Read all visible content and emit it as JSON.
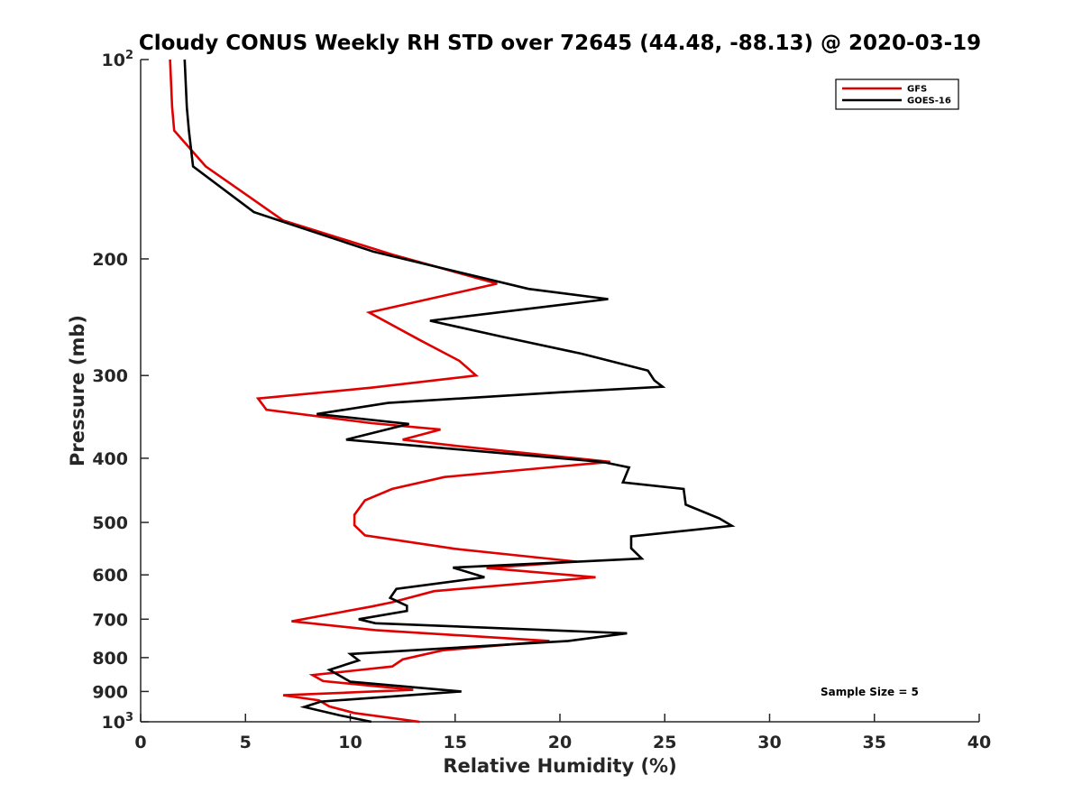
{
  "chart_data": {
    "type": "line",
    "title": "Cloudy CONUS Weekly RH STD over 72645 (44.48, -88.13) @ 2020-03-19",
    "xlabel": "Relative Humidity (%)",
    "ylabel": "Pressure (mb)",
    "xlim": [
      0,
      40
    ],
    "ylim": [
      100,
      1000
    ],
    "y_scale": "log",
    "y_reversed": true,
    "grid": false,
    "legend_location": "top-right",
    "x_ticks": [
      {
        "value": 0,
        "label": "0"
      },
      {
        "value": 5,
        "label": "5"
      },
      {
        "value": 10,
        "label": "10"
      },
      {
        "value": 15,
        "label": "15"
      },
      {
        "value": 20,
        "label": "20"
      },
      {
        "value": 25,
        "label": "25"
      },
      {
        "value": 30,
        "label": "30"
      },
      {
        "value": 35,
        "label": "35"
      },
      {
        "value": 40,
        "label": "40"
      }
    ],
    "y_ticks": [
      {
        "value": 100,
        "label": "10",
        "exponent": "2"
      },
      {
        "value": 200,
        "label": "200"
      },
      {
        "value": 300,
        "label": "300"
      },
      {
        "value": 400,
        "label": "400"
      },
      {
        "value": 500,
        "label": "500"
      },
      {
        "value": 600,
        "label": "600"
      },
      {
        "value": 700,
        "label": "700"
      },
      {
        "value": 800,
        "label": "800"
      },
      {
        "value": 900,
        "label": "900"
      },
      {
        "value": 1000,
        "label": "10",
        "exponent": "3"
      }
    ],
    "annotation": "Sample Size = 5",
    "series": [
      {
        "name": "GFS",
        "color": "#e00000",
        "x": [
          1.4,
          1.5,
          1.6,
          3.1,
          6.8,
          12.0,
          17.0,
          10.9,
          13.3,
          15.2,
          16.0,
          11.0,
          5.6,
          6.0,
          11.0,
          14.3,
          12.5,
          15.0,
          22.4,
          14.5,
          12.0,
          10.7,
          10.2,
          10.2,
          10.7,
          15.0,
          20.8,
          16.5,
          21.7,
          14.0,
          12.0,
          11.0,
          7.2,
          11.2,
          19.5,
          14.4,
          12.5,
          12.0,
          8.2,
          8.7,
          13.0,
          6.8,
          8.5,
          9.0,
          10.2,
          13.3
        ],
        "y": [
          100,
          118,
          128,
          145,
          175,
          197,
          218,
          241,
          265,
          285,
          300,
          313,
          325,
          338,
          354,
          362,
          375,
          383,
          405,
          427,
          445,
          463,
          487,
          505,
          523,
          548,
          573,
          586,
          605,
          635,
          660,
          670,
          705,
          727,
          755,
          780,
          805,
          825,
          850,
          868,
          895,
          912,
          928,
          948,
          970,
          1000
        ]
      },
      {
        "name": "GOES-16",
        "color": "#000000",
        "x": [
          2.1,
          2.2,
          2.3,
          2.5,
          5.4,
          11.1,
          18.5,
          22.3,
          13.8,
          17.2,
          21.0,
          24.2,
          24.5,
          24.9,
          20.0,
          11.8,
          8.4,
          12.8,
          9.8,
          22.0,
          23.3,
          23.0,
          25.9,
          26.0,
          27.6,
          28.2,
          23.4,
          23.4,
          23.9,
          14.9,
          16.4,
          12.2,
          11.9,
          12.7,
          12.7,
          10.4,
          11.2,
          23.2,
          20.4,
          10.0,
          10.4,
          9.0,
          10.0,
          15.3,
          8.6,
          7.8,
          9.5,
          11.0
        ],
        "y": [
          100,
          118,
          128,
          145,
          170,
          195,
          222,
          230,
          248,
          262,
          278,
          295,
          305,
          312,
          318,
          330,
          343,
          355,
          375,
          405,
          413,
          435,
          445,
          470,
          493,
          506,
          525,
          547,
          567,
          585,
          605,
          630,
          650,
          668,
          680,
          700,
          710,
          735,
          755,
          790,
          808,
          835,
          870,
          900,
          932,
          950,
          978,
          1000
        ]
      }
    ]
  }
}
